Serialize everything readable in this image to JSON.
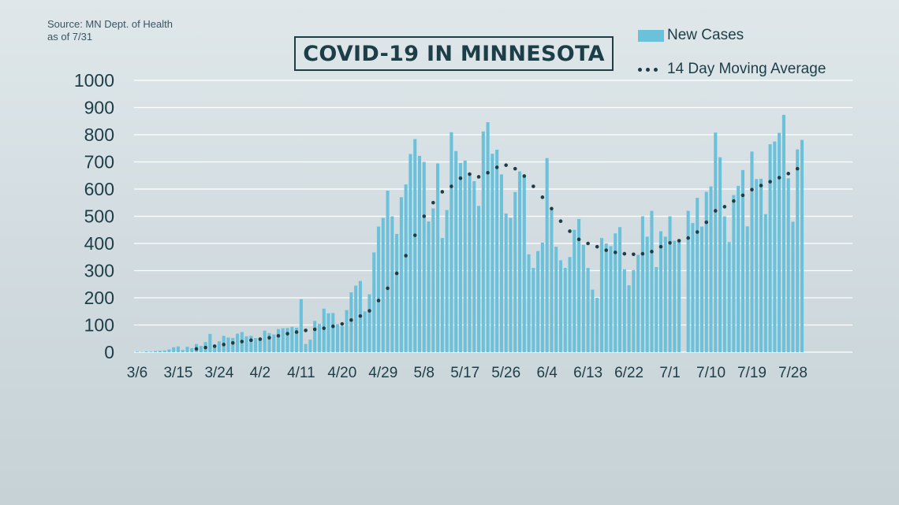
{
  "source": {
    "line1": "Source: MN Dept. of Health",
    "line2": "as of 7/31"
  },
  "chart_data": {
    "type": "bar",
    "title": "COVID-19 IN MINNESOTA",
    "xlabel": "",
    "ylabel": "",
    "ylim": [
      0,
      1000
    ],
    "yticks": [
      0,
      100,
      200,
      300,
      400,
      500,
      600,
      700,
      800,
      900,
      1000
    ],
    "xticks": [
      "3/6",
      "3/15",
      "3/24",
      "4/2",
      "4/11",
      "4/20",
      "4/29",
      "5/8",
      "5/17",
      "5/26",
      "6/4",
      "6/13",
      "6/22",
      "7/1",
      "7/10",
      "7/19",
      "7/28"
    ],
    "x_start": "3/6",
    "x_end": "7/30",
    "grid": "horizontal",
    "legend_position": "top-right",
    "colors": {
      "bars": "#6cc1da",
      "average": "#1d3d47",
      "grid": "#ffffff",
      "text": "#1d3d47"
    },
    "series": [
      {
        "name": "New Cases",
        "type": "bar",
        "values": [
          2,
          1,
          3,
          2,
          4,
          5,
          6,
          10,
          18,
          21,
          8,
          20,
          15,
          30,
          23,
          37,
          67,
          25,
          40,
          60,
          54,
          52,
          68,
          74,
          58,
          60,
          52,
          48,
          79,
          70,
          65,
          85,
          88,
          89,
          93,
          90,
          195,
          30,
          46,
          115,
          104,
          160,
          143,
          144,
          103,
          96,
          155,
          220,
          245,
          262,
          150,
          213,
          367,
          462,
          494,
          594,
          500,
          435,
          570,
          617,
          729,
          784,
          722,
          700,
          481,
          529,
          694,
          420,
          523,
          809,
          740,
          696,
          705,
          655,
          629,
          538,
          812,
          846,
          730,
          745,
          654,
          510,
          494,
          589,
          665,
          651,
          360,
          310,
          372,
          403,
          714,
          522,
          388,
          338,
          310,
          350,
          450,
          490,
          395,
          310,
          230,
          200,
          420,
          400,
          390,
          437,
          460,
          305,
          246,
          302,
          358,
          500,
          425,
          520,
          313,
          445,
          425,
          500,
          410,
          415,
          0,
          520,
          475,
          568,
          462,
          590,
          610,
          808,
          717,
          500,
          405,
          578,
          612,
          670,
          463,
          738,
          637,
          638,
          508,
          765,
          775,
          807,
          873,
          640,
          480,
          746,
          781
        ]
      },
      {
        "name": "14 Day Moving Average",
        "type": "line",
        "style": "dotted",
        "values": [
          null,
          null,
          null,
          null,
          null,
          null,
          null,
          null,
          null,
          null,
          null,
          null,
          null,
          12,
          14,
          17,
          20,
          22,
          25,
          28,
          31,
          34,
          37,
          39,
          42,
          44,
          46,
          48,
          50,
          53,
          56,
          60,
          64,
          68,
          71,
          74,
          77,
          80,
          82,
          84,
          86,
          88,
          91,
          95,
          100,
          104,
          110,
          118,
          125,
          133,
          142,
          152,
          168,
          190,
          210,
          235,
          260,
          290,
          320,
          355,
          390,
          430,
          465,
          500,
          525,
          550,
          570,
          590,
          600,
          610,
          625,
          640,
          650,
          655,
          650,
          645,
          650,
          660,
          670,
          680,
          685,
          688,
          685,
          675,
          662,
          648,
          630,
          610,
          590,
          570,
          550,
          528,
          505,
          482,
          462,
          445,
          430,
          415,
          405,
          400,
          395,
          388,
          380,
          375,
          370,
          367,
          365,
          362,
          360,
          360,
          361,
          362,
          365,
          370,
          378,
          388,
          396,
          402,
          406,
          410,
          414,
          420,
          430,
          442,
          458,
          478,
          500,
          520,
          527,
          535,
          545,
          556,
          567,
          577,
          588,
          598,
          606,
          613,
          620,
          627,
          635,
          642,
          649,
          657,
          665,
          675,
          678
        ]
      }
    ]
  }
}
